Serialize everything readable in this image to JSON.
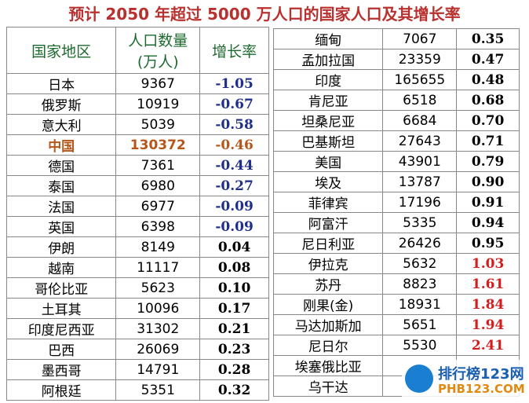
{
  "title": "预计 2050 年超过 5000 万人口的国家人口及其增长率",
  "left_table": {
    "header": [
      "国家地区",
      "人口数量\n(万人)",
      "增长率"
    ],
    "rows": [
      [
        "日本",
        9367,
        "-1.05"
      ],
      [
        "俄罗斯",
        10919,
        "-0.67"
      ],
      [
        "意大利",
        5039,
        "-0.58"
      ],
      [
        "中国",
        130372,
        "-0.46"
      ],
      [
        "德国",
        7361,
        "-0.44"
      ],
      [
        "泰国",
        6980,
        "-0.27"
      ],
      [
        "法国",
        6977,
        "-0.09"
      ],
      [
        "英国",
        6398,
        "-0.09"
      ],
      [
        "伊朗",
        8149,
        "0.04"
      ],
      [
        "越南",
        11117,
        "0.08"
      ],
      [
        "哥伦比亚",
        5623,
        "0.10"
      ],
      [
        "土耳其",
        10096,
        "0.17"
      ],
      [
        "印度尼西亚",
        31302,
        "0.21"
      ],
      [
        "巴西",
        26069,
        "0.23"
      ],
      [
        "墨西哥",
        14791,
        "0.28"
      ],
      [
        "阿根廷",
        5351,
        "0.32"
      ]
    ]
  },
  "right_table": {
    "rows": [
      [
        "缅甸",
        7067,
        "0.35"
      ],
      [
        "孟加拉国",
        23359,
        "0.47"
      ],
      [
        "印度",
        165655,
        "0.48"
      ],
      [
        "肯尼亚",
        6518,
        "0.68"
      ],
      [
        "坦桑尼亚",
        6684,
        "0.70"
      ],
      [
        "巴基斯坦",
        27643,
        "0.71"
      ],
      [
        "美国",
        43901,
        "0.79"
      ],
      [
        "埃及",
        13787,
        "0.90"
      ],
      [
        "菲律宾",
        17196,
        "0.91"
      ],
      [
        "阿富汗",
        5335,
        "0.94"
      ],
      [
        "尼日利亚",
        26426,
        "0.95"
      ],
      [
        "伊拉克",
        5632,
        "1.03"
      ],
      [
        "苏丹",
        8823,
        "1.61"
      ],
      [
        "刚果(金)",
        18931,
        "1.84"
      ],
      [
        "马达加斯加",
        5651,
        "1.94"
      ],
      [
        "尼日尔",
        5530,
        "2.41"
      ],
      [
        "埃塞俄比亚"
      ],
      [
        "乌干达"
      ]
    ]
  },
  "watermark": {
    "name": "排行榜123网",
    "url": "PHB123.COM"
  }
}
